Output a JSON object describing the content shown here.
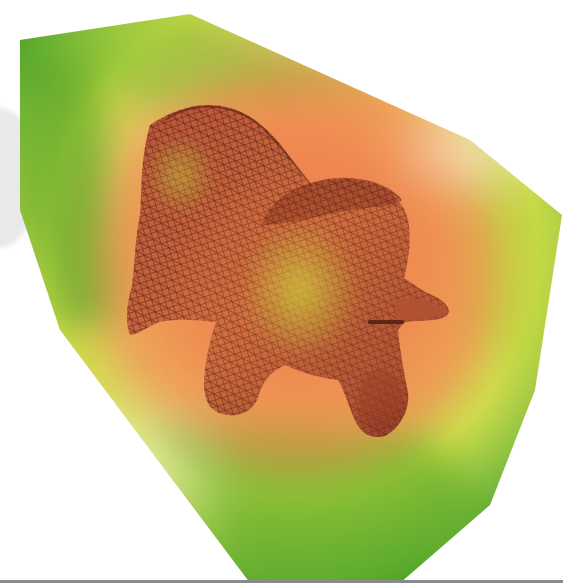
{
  "scene": {
    "subject": "triceratops-wireframe-mesh",
    "visualization": "volume-field",
    "colors": {
      "background": "#ffffff",
      "field_outer": "#3f9a1c",
      "field_mid": "#c6d62e",
      "field_inner": "#f08a4b",
      "mesh_fill": "#c4623f",
      "mesh_wire": "#5e1f14",
      "shadow_disc": "#e9e9e9",
      "bottom_rule": "#8a8a8a"
    }
  }
}
